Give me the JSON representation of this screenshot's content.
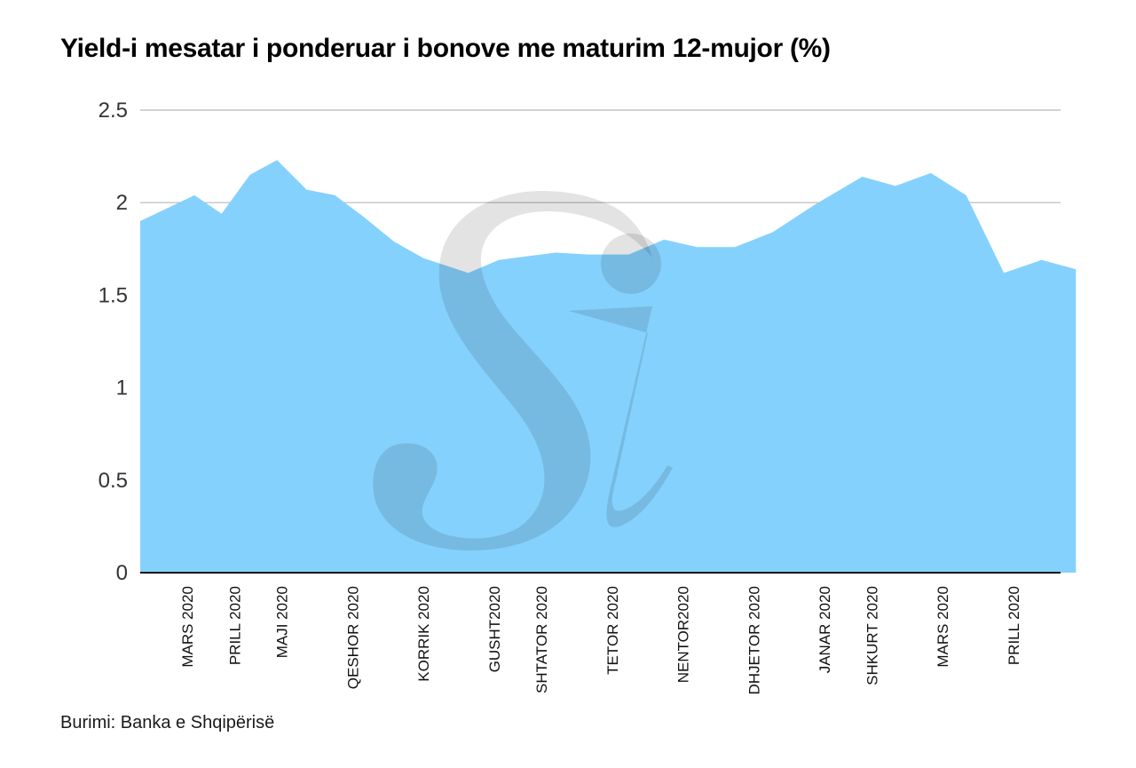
{
  "colors": {
    "area": "#85d1fd",
    "gridline": "#b7b7b7",
    "axis": "#111111",
    "watermark": "#c9c9c9"
  },
  "chart_data": {
    "type": "area",
    "title": "Yield-i mesatar i ponderuar i bonove me maturim 12-mujor (%)",
    "source": "Burimi: Banka e Shqipërisë",
    "xlabel": "",
    "ylabel": "",
    "ylim": [
      0,
      2.5
    ],
    "yticks": [
      0,
      0.5,
      1,
      1.5,
      2,
      2.5
    ],
    "ytick_labels": [
      "0",
      "0.5",
      "1",
      "1.5",
      "2",
      "2.5"
    ],
    "grid": true,
    "legend": "none",
    "x_ticks": [
      {
        "label": "MARS 2020",
        "index": 2
      },
      {
        "label": "PRILL 2020",
        "index": 4
      },
      {
        "label": "MAJI 2020",
        "index": 6
      },
      {
        "label": "QESHOR 2020",
        "index": 9
      },
      {
        "label": "KORRIK 2020",
        "index": 12
      },
      {
        "label": "GUSHT2020",
        "index": 15
      },
      {
        "label": "SHTATOR 2020",
        "index": 17
      },
      {
        "label": "TETOR 2020",
        "index": 20
      },
      {
        "label": "NENTOR2020",
        "index": 23
      },
      {
        "label": "DHJETOR 2020",
        "index": 26
      },
      {
        "label": "JANAR 2020",
        "index": 29
      },
      {
        "label": "SHKURT 2020",
        "index": 31
      },
      {
        "label": "MARS 2020",
        "index": 34
      },
      {
        "label": "PRILL 2020",
        "index": 37
      }
    ],
    "values": [
      1.9,
      2.04,
      1.94,
      2.15,
      2.23,
      2.07,
      2.04,
      1.92,
      1.79,
      1.7,
      1.62,
      1.69,
      1.71,
      1.73,
      1.72,
      1.72,
      1.8,
      1.76,
      1.76,
      1.84,
      1.99,
      2.14,
      2.09,
      2.16,
      2.04,
      1.62,
      1.69,
      1.64
    ],
    "x": [
      0,
      2.3,
      3.45,
      4.65,
      5.8,
      7.05,
      8.25,
      9.5,
      10.75,
      12,
      13.9,
      15.2,
      16.4,
      17.6,
      19,
      20.7,
      22.2,
      23.6,
      25.2,
      26.8,
      28.6,
      30.6,
      32.0,
      33.5,
      35.0,
      36.6,
      38.2,
      39.65
    ],
    "n_points": 40
  }
}
